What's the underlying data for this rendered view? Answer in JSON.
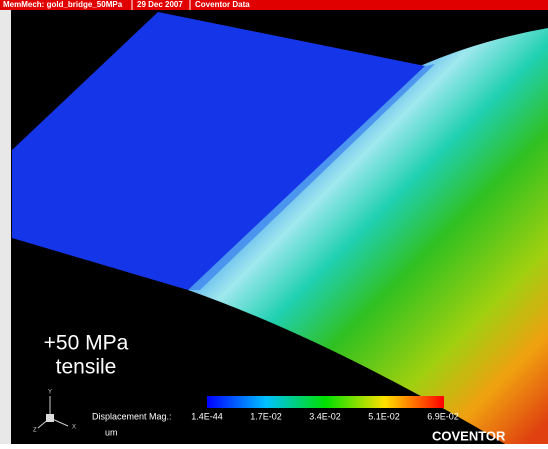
{
  "header": {
    "title": "MemMech: gold_bridge_50MPa",
    "date": "29 Dec 2007",
    "source": "Coventor Data"
  },
  "annotation": {
    "line1": "+50 MPa",
    "line2": "tensile"
  },
  "legend": {
    "label": "Displacement Mag.:",
    "ticks": [
      "1.4E-44",
      "1.7E-02",
      "3.4E-02",
      "5.1E-02",
      "6.9E-02"
    ],
    "unit": "um"
  },
  "triad": {
    "y": "Y",
    "x": "X",
    "z": "Z"
  },
  "brand": "COVENTOR"
}
